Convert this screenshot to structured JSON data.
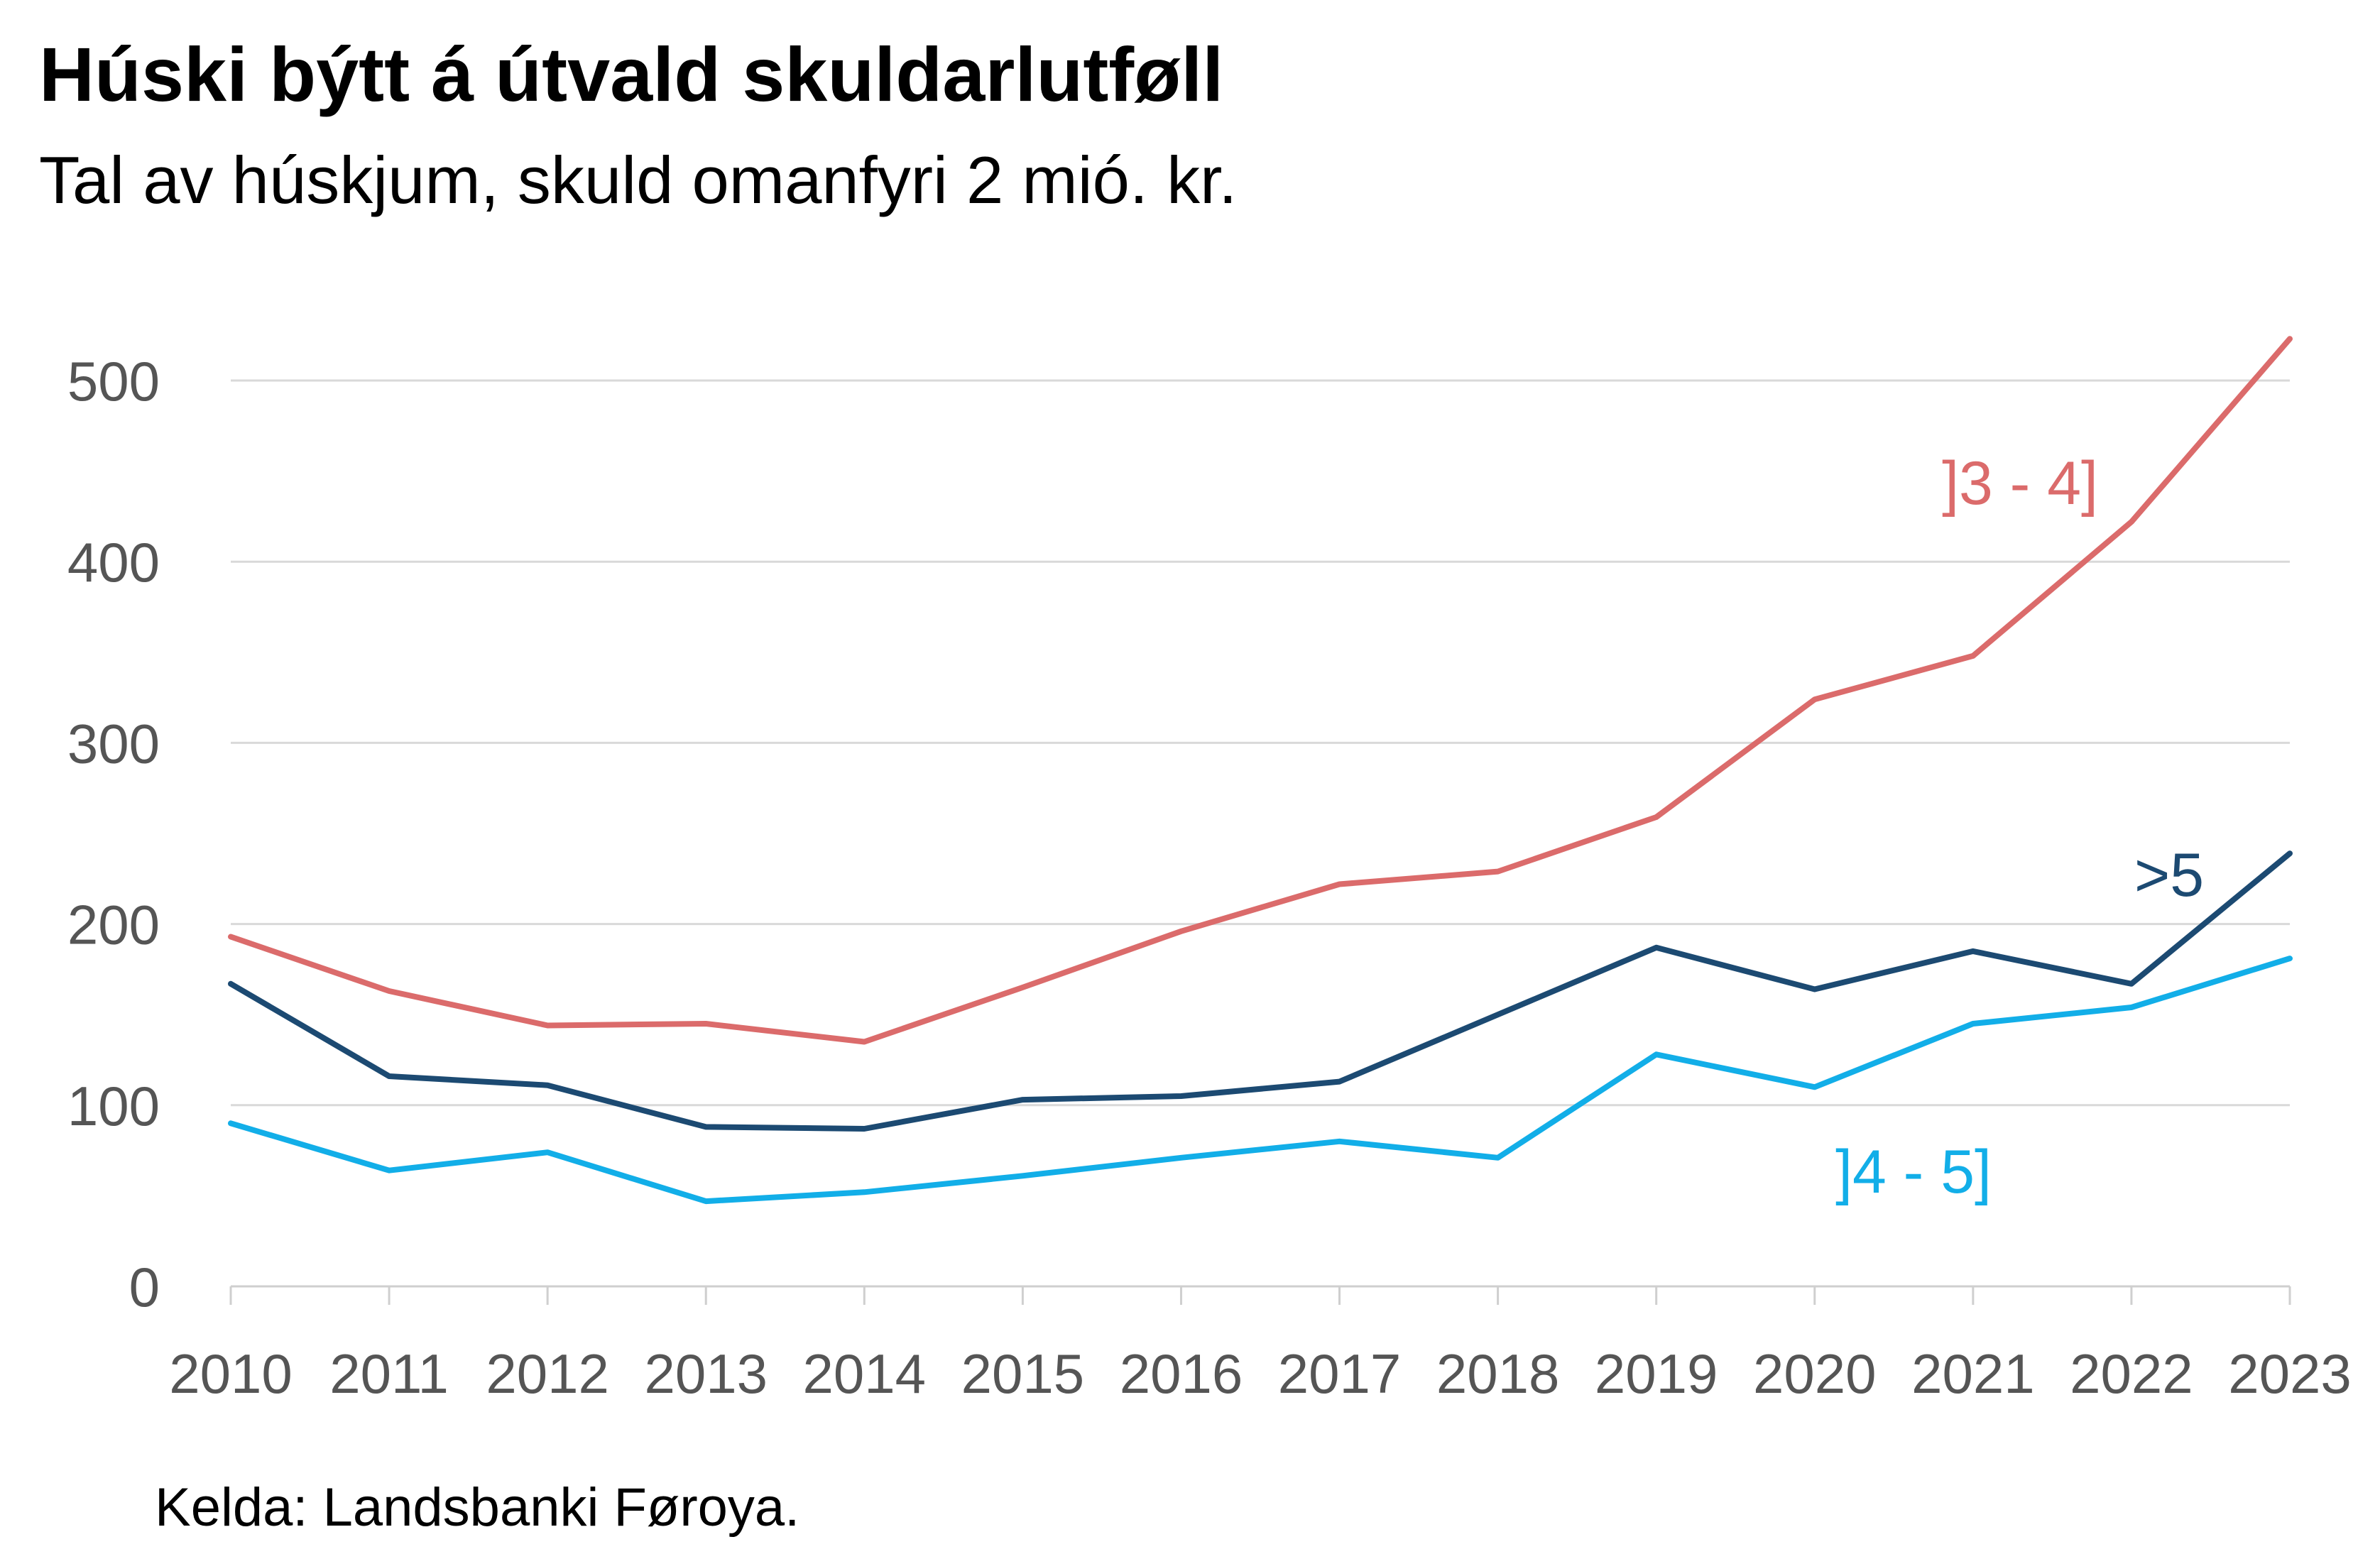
{
  "title": "Húski býtt á útvald skuldarlutføll",
  "subtitle": "Tal av húskjum, skuld omanfyri 2 mió. kr.",
  "source": "Kelda: Landsbanki Føroya.",
  "chart_data": {
    "type": "line",
    "title": "Húski býtt á útvald skuldarlutføll",
    "subtitle": "Tal av húskjum, skuld omanfyri 2 mió. kr.",
    "x": [
      "2010",
      "2011",
      "2012",
      "2013",
      "2014",
      "2015",
      "2016",
      "2017",
      "2018",
      "2019",
      "2020",
      "2021",
      "2022",
      "2023"
    ],
    "yticks": [
      "0",
      "100",
      "200",
      "300",
      "400",
      "500"
    ],
    "ylim": [
      0,
      500
    ],
    "grid": true,
    "legend": "inline labels",
    "series": [
      {
        "name": "]3 - 4]",
        "color": "#db6b6b",
        "values": [
          193,
          163,
          144,
          145,
          135,
          165,
          196,
          222,
          229,
          259,
          324,
          348,
          422,
          523
        ]
      },
      {
        "name": ">5",
        "color": "#1c4a72",
        "values": [
          167,
          116,
          111,
          88,
          87,
          103,
          105,
          113,
          150,
          187,
          164,
          185,
          167,
          239
        ]
      },
      {
        "name": "]4 - 5]",
        "color": "#12aee8",
        "values": [
          90,
          64,
          74,
          47,
          52,
          61,
          71,
          80,
          71,
          128,
          110,
          145,
          154,
          181
        ]
      }
    ]
  }
}
